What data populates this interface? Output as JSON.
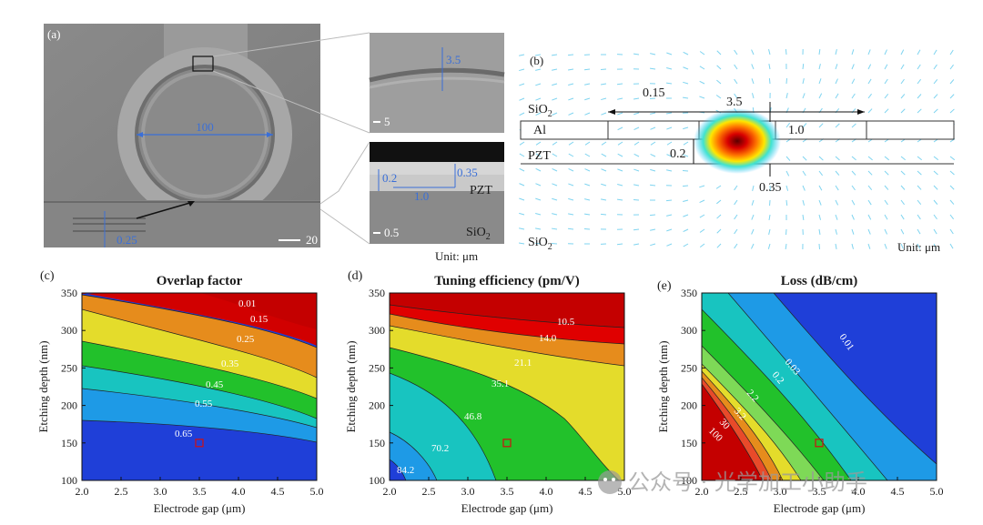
{
  "panels": {
    "a": {
      "label": "(a)",
      "ring_diameter": "100",
      "sem_scale": "20",
      "waveguide_width": "0.25",
      "inset_top": {
        "dimension": "3.5",
        "scale": "5"
      },
      "inset_bottom": {
        "etch": "0.2",
        "thickness": "0.35",
        "gap": "1.0",
        "material_top": "PZT",
        "material_bottom": "SiO",
        "material_bottom_sub": "2",
        "scale": "0.5"
      },
      "unit": "Unit: μm"
    },
    "b": {
      "label": "(b)",
      "sio2_top": "SiO",
      "sio2_top_sub": "2",
      "al": "Al",
      "pzt": "PZT",
      "sio2_bottom": "SiO",
      "sio2_bottom_sub": "2",
      "dim_0_15": "0.15",
      "dim_3_5": "3.5",
      "dim_1_0": "1.0",
      "dim_0_2": "0.2",
      "dim_0_35": "0.35",
      "unit": "Unit: μm"
    }
  },
  "chart_data": [
    {
      "panel": "(c)",
      "type": "contour",
      "title": "Overlap factor",
      "xlabel": "Electrode gap (μm)",
      "ylabel": "Etching depth (nm)",
      "xlim": [
        2.0,
        5.0
      ],
      "ylim": [
        100,
        350
      ],
      "xticks": [
        "2.0",
        "2.5",
        "3.0",
        "3.5",
        "4.0",
        "4.5",
        "5.0"
      ],
      "yticks": [
        "100",
        "150",
        "200",
        "250",
        "300",
        "350"
      ],
      "contour_levels": [
        "0.01",
        "0.15",
        "0.25",
        "0.35",
        "0.45",
        "0.55",
        "0.65"
      ],
      "marker": {
        "x": 3.5,
        "y": 150
      }
    },
    {
      "panel": "(d)",
      "type": "contour",
      "title": "Tuning efficiency  (pm/V)",
      "xlabel": "Electrode gap (μm)",
      "ylabel": "Etching depth (nm)",
      "xlim": [
        2.0,
        5.0
      ],
      "ylim": [
        100,
        350
      ],
      "xticks": [
        "2.0",
        "2.5",
        "3.0",
        "3.5",
        "4.0",
        "4.5",
        "5.0"
      ],
      "yticks": [
        "100",
        "150",
        "200",
        "250",
        "300",
        "350"
      ],
      "contour_levels": [
        "10.5",
        "14.0",
        "21.1",
        "35.1",
        "46.8",
        "70.2",
        "84.2"
      ],
      "marker": {
        "x": 3.5,
        "y": 150
      }
    },
    {
      "panel": "(e)",
      "type": "contour",
      "title": "Loss (dB/cm)",
      "xlabel": "Electrode gap (μm)",
      "ylabel": "Etching depth (nm)",
      "xlim": [
        2.0,
        5.0
      ],
      "ylim": [
        100,
        350
      ],
      "xticks": [
        "2.0",
        "2.5",
        "3.0",
        "3.5",
        "4.0",
        "4.5",
        "5.0"
      ],
      "yticks": [
        "100",
        "150",
        "200",
        "250",
        "300",
        "350"
      ],
      "contour_levels": [
        "0.01",
        "0.03",
        "0.2",
        "2.2",
        "3.2",
        "30",
        "100"
      ],
      "marker": {
        "x": 3.5,
        "y": 150
      }
    }
  ],
  "watermark": "公众号 · 光学加工小助手"
}
